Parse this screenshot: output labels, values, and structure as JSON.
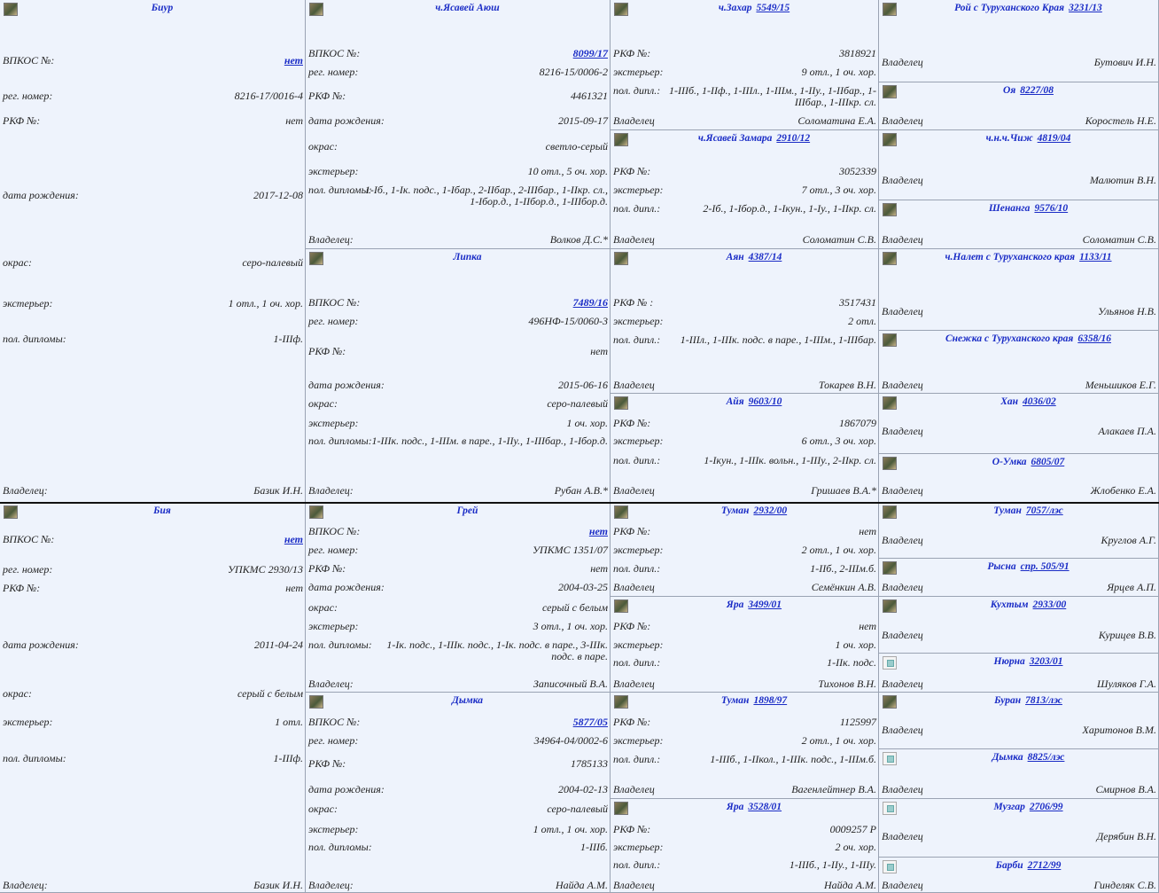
{
  "labels": {
    "vpkos": "ВПКОС №:",
    "reg": "рег. номер:",
    "rkf": "РКФ №:",
    "rkf_sp": "РКФ № :",
    "birth": "дата рождения:",
    "color": "окрас:",
    "exterior": "экстерьер:",
    "diplomas": "пол. дипломы:",
    "dipl": "пол. дипл.:",
    "owner": "Владелец:",
    "owner_nc": "Владелец"
  },
  "col1": [
    {
      "name": "Биур",
      "vpkos": "нет",
      "reg": "8216-17/0016-4",
      "rkf": "нет",
      "birth": "2017-12-08",
      "color": "серо-палевый",
      "exterior": "1 отл., 1 оч. хор.",
      "diplomas": "1-IIIф.",
      "owner": "Базик И.Н."
    },
    {
      "name": "Бия",
      "vpkos": "нет",
      "reg": "УПКМС 2930/13",
      "rkf": "нет",
      "birth": "2011-04-24",
      "color": "серый с белым",
      "exterior": "1 отл.",
      "diplomas": "1-IIIф.",
      "owner": "Базик И.Н."
    }
  ],
  "col2": [
    {
      "name": "ч.Ясавей Аюш",
      "vpkos": "8099/17",
      "reg": "8216-15/0006-2",
      "rkf": "4461321",
      "birth": "2015-09-17",
      "color": "светло-серый",
      "exterior": "10 отл., 5 оч. хор.",
      "diplomas": "1-Iб., 1-Iк. подс., 1-Iбар., 2-IIбар., 2-IIIбар., 1-IIкр. сл., 1-Iбор.д., 1-IIбор.д., 1-IIIбор.д.",
      "owner": "Волков Д.С.*"
    },
    {
      "name": "Липка",
      "vpkos": "7489/16",
      "reg": "496НФ-15/0060-3",
      "rkf": "нет",
      "birth": "2015-06-16",
      "color": "серо-палевый",
      "exterior": "1 оч. хор.",
      "diplomas": "1-IIIк. подс., 1-IIIм. в паре., 1-IIу., 1-IIIбар., 1-Iбор.д.",
      "owner": "Рубан А.В.*"
    },
    {
      "name": "Грей",
      "vpkos": "нет",
      "reg": "УПКМС 1351/07",
      "rkf": "нет",
      "birth": "2004-03-25",
      "color": "серый с белым",
      "exterior": "3 отл., 1 оч. хор.",
      "diplomas": "1-Iк. подс., 1-IIIк. подс., 1-Iк. подс. в паре., 3-IIIк. подс. в паре.",
      "owner": "Записочный В.А."
    },
    {
      "name": "Дымка",
      "vpkos": "5877/05",
      "reg": "34964-04/0002-6",
      "rkf": "1785133",
      "birth": "2004-02-13",
      "color": "серо-палевый",
      "exterior": "1 отл., 1 оч. хор.",
      "diplomas": "1-IIIб.",
      "owner": "Найда А.М."
    }
  ],
  "col3": [
    {
      "name": "ч.Захар",
      "num": "5549/15",
      "rkf": "3818921",
      "exterior": "9 отл., 1 оч. хор.",
      "dipl": "1-IIIб., 1-IIф., 1-IIIл., 1-IIIм., 1-IIу., 1-IIбар., 1-IIIбар., 1-IIIкр. сл.",
      "owner": "Соломатина Е.А."
    },
    {
      "name": "ч.Ясавей Замара",
      "num": "2910/12",
      "rkf": "3052339",
      "exterior": "7 отл., 3 оч. хор.",
      "dipl": "2-Iб., 1-Iбор.д., 1-Iкун., 1-Iу., 1-IIкр. сл.",
      "owner": "Соломатин С.В."
    },
    {
      "name": "Аян",
      "num": "4387/14",
      "rkf": "3517431",
      "exterior": "2 отл.",
      "dipl": "1-IIIл., 1-IIIк. подс. в паре., 1-IIIм., 1-IIIбар.",
      "owner": "Токарев В.Н."
    },
    {
      "name": "Айя",
      "num": "9603/10",
      "rkf": "1867079",
      "exterior": "6 отл., 3 оч. хор.",
      "dipl": "1-Iкун., 1-IIIк. вольн., 1-IIIу., 2-IIкр. сл.",
      "owner": "Гришаев В.А.*"
    },
    {
      "name": "Туман",
      "num": "2932/00",
      "rkf": "нет",
      "exterior": "2 отл., 1 оч. хор.",
      "dipl": "1-IIб., 2-IIIм.б.",
      "owner": "Семёнкин А.В."
    },
    {
      "name": "Яра",
      "num": "3499/01",
      "rkf": "нет",
      "exterior": "1 оч. хор.",
      "dipl": "1-IIк. подс.",
      "owner": "Тихонов В.Н."
    },
    {
      "name": "Туман",
      "num": "1898/97",
      "rkf": "1125997",
      "exterior": "2 отл., 1 оч. хор.",
      "dipl": "1-IIIб., 1-IIкол., 1-IIIк. подс., 1-IIIм.б.",
      "owner": "Вагенлейтнер В.А."
    },
    {
      "name": "Яра",
      "num": "3528/01",
      "rkf": "0009257 Р",
      "exterior": "2 оч. хор.",
      "dipl": "1-IIIб., 1-IIу., 1-IIIу.",
      "owner": "Найда А.М."
    }
  ],
  "col4": [
    {
      "name": "Рой с Туруханского Края",
      "num": "3231/13",
      "owner": "Бутович И.Н."
    },
    {
      "name": "Оя",
      "num": "8227/08",
      "owner": "Коростель Н.Е."
    },
    {
      "name": "ч.н.ч.Чиж",
      "num": "4819/04",
      "owner": "Малютин В.Н."
    },
    {
      "name": "Шенанга",
      "num": "9576/10",
      "owner": "Соломатин С.В."
    },
    {
      "name": "ч.Налет с Туруханского края",
      "num": "1133/11",
      "owner": "Ульянов Н.В."
    },
    {
      "name": "Снежка с Туруханского края",
      "num": "6358/16",
      "owner": "Меньшиков Е.Г."
    },
    {
      "name": "Хан",
      "num": "4036/02",
      "owner": "Алакаев П.А."
    },
    {
      "name": "О-Умка",
      "num": "6805/07",
      "owner": "Жлобенко Е.А."
    },
    {
      "name": "Туман",
      "num": "7057/лэс",
      "owner": "Круглов А.Г."
    },
    {
      "name": "Рысна",
      "num": "спр. 505/91",
      "owner": "Ярцев А.П."
    },
    {
      "name": "Кухтым",
      "num": "2933/00",
      "owner": "Курицев В.В."
    },
    {
      "name": "Нюрна",
      "num": "3203/01",
      "owner": "Шуляков Г.А."
    },
    {
      "name": "Буран",
      "num": "7813/лэс",
      "owner": "Харитонов В.М."
    },
    {
      "name": "Дымка",
      "num": "8825/лэс",
      "owner": "Смирнов В.А."
    },
    {
      "name": "Музгар",
      "num": "2706/99",
      "owner": "Дерябин В.Н."
    },
    {
      "name": "Барби",
      "num": "2712/99",
      "owner": "Гинделяк С.В."
    }
  ]
}
